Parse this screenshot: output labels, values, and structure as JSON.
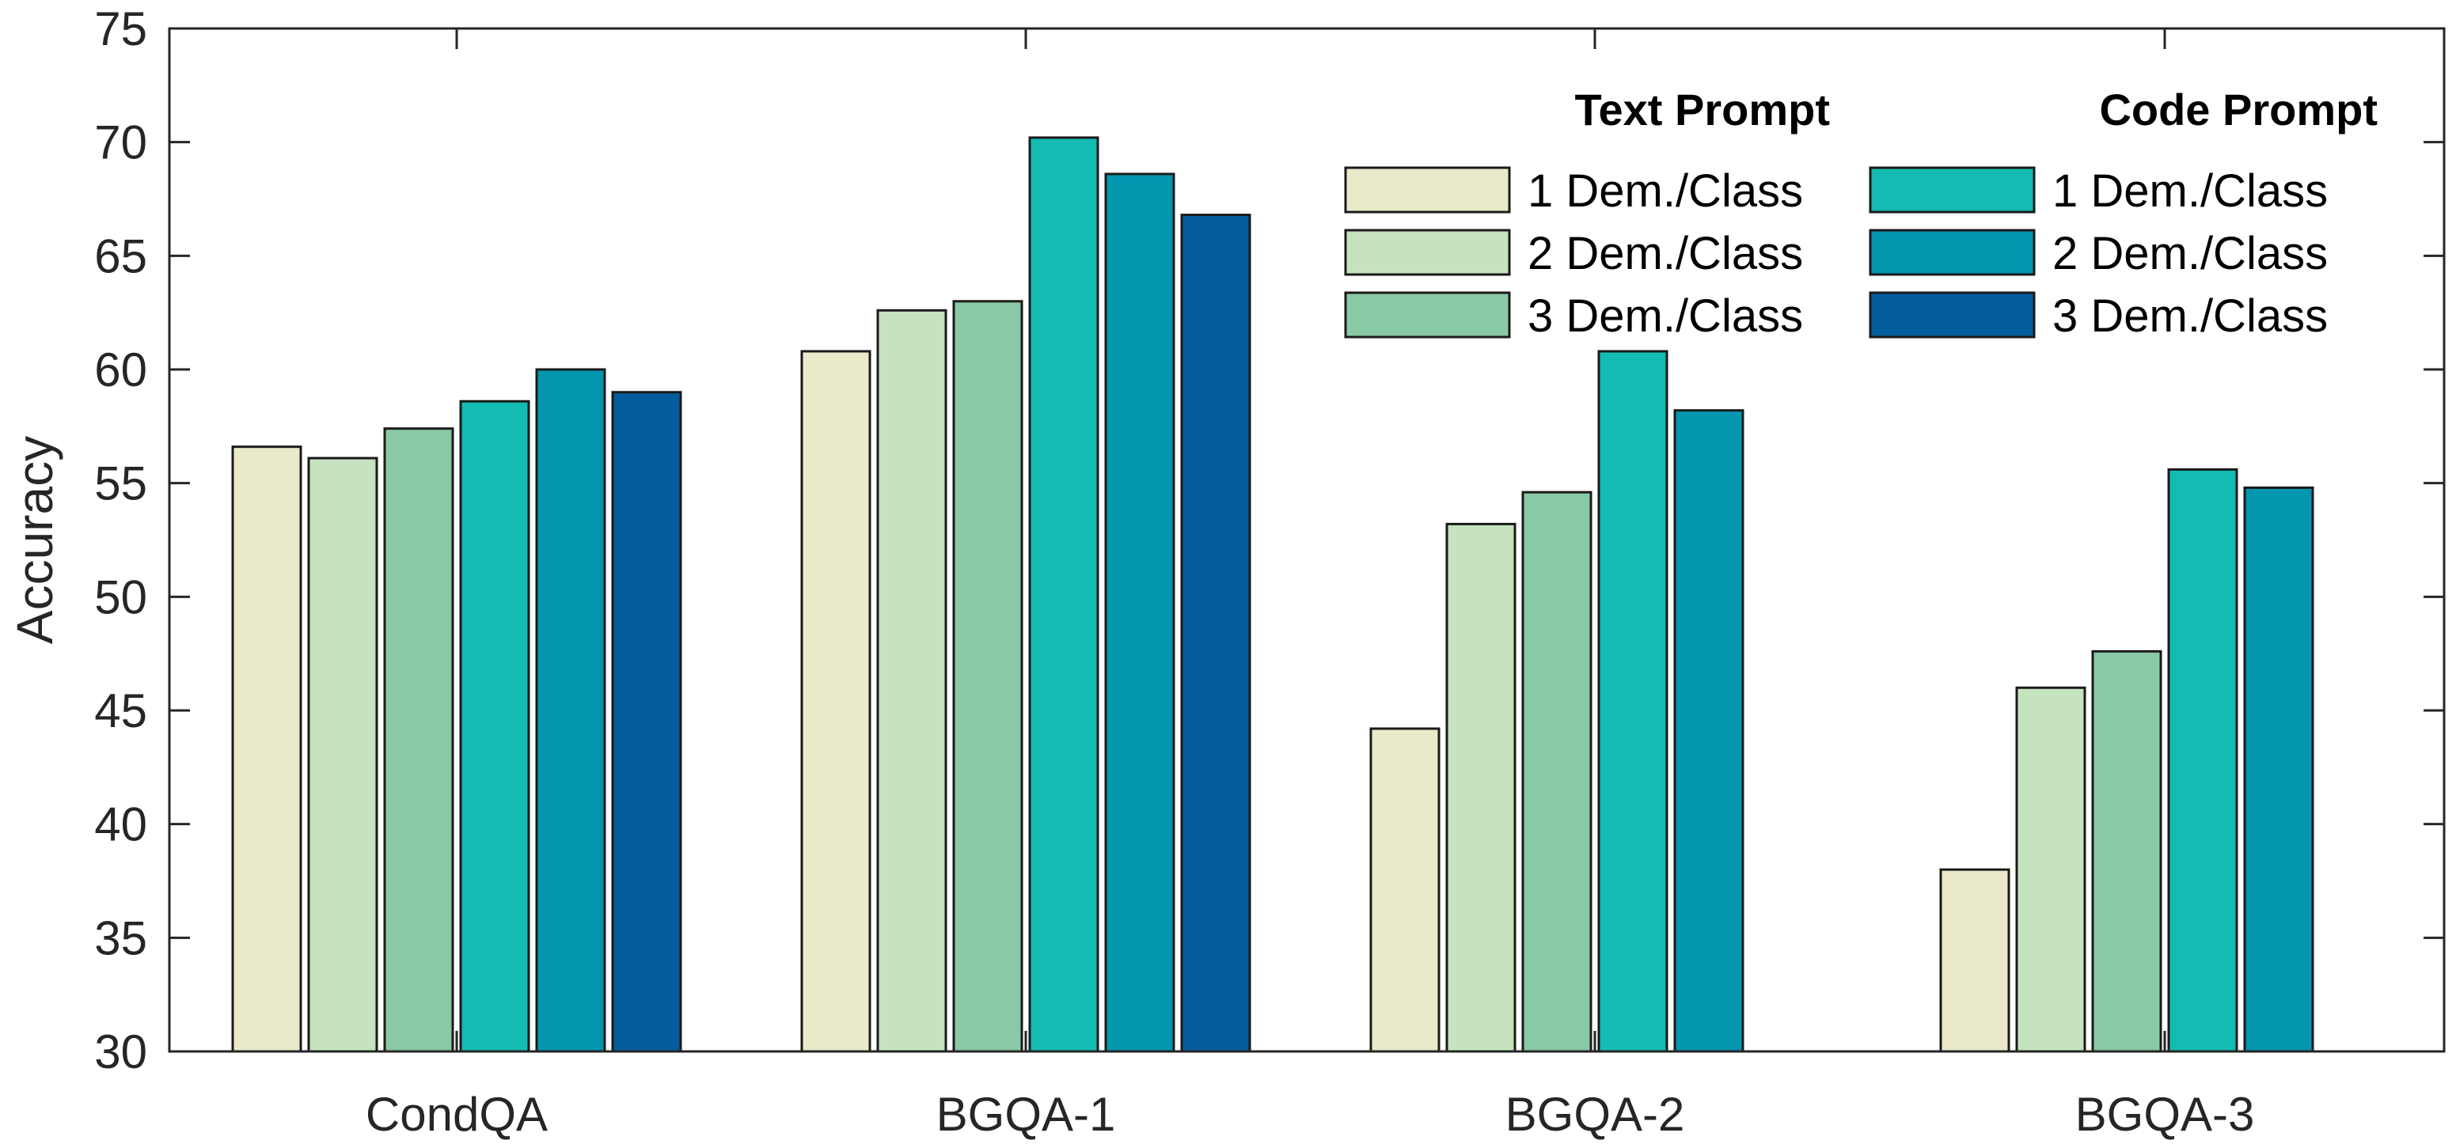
{
  "chart_data": {
    "type": "bar",
    "title": "",
    "xlabel": "",
    "ylabel": "Accuracy",
    "ylim": [
      30,
      75
    ],
    "yticks": [
      30,
      35,
      40,
      45,
      50,
      55,
      60,
      65,
      70,
      75
    ],
    "categories": [
      "CondQA",
      "BGQA-1",
      "BGQA-2",
      "BGQA-3"
    ],
    "grid": false,
    "legend_position": "top-right",
    "legend_groups": [
      {
        "heading": "Text Prompt",
        "series_indices": [
          0,
          1,
          2
        ]
      },
      {
        "heading": "Code Prompt",
        "series_indices": [
          3,
          4,
          5
        ]
      }
    ],
    "series": [
      {
        "name": "1 Dem./Class",
        "group": "Text Prompt",
        "color": "#EAEACB",
        "values": [
          56.6,
          60.8,
          44.2,
          38.0
        ]
      },
      {
        "name": "2 Dem./Class",
        "group": "Text Prompt",
        "color": "#C5E3BE",
        "values": [
          56.1,
          62.6,
          53.2,
          46.0
        ]
      },
      {
        "name": "3 Dem./Class",
        "group": "Text Prompt",
        "color": "#89C9A5",
        "values": [
          57.4,
          63.0,
          54.6,
          47.6
        ]
      },
      {
        "name": "1 Dem./Class",
        "group": "Code Prompt",
        "color": "#12BCB2",
        "values": [
          58.6,
          70.2,
          60.8,
          55.6
        ]
      },
      {
        "name": "2 Dem./Class",
        "group": "Code Prompt",
        "color": "#0396AF",
        "values": [
          60.0,
          68.6,
          58.2,
          54.8
        ]
      },
      {
        "name": "3 Dem./Class",
        "group": "Code Prompt",
        "color": "#035D9D",
        "values": [
          59.0,
          66.8,
          null,
          null
        ]
      }
    ]
  }
}
